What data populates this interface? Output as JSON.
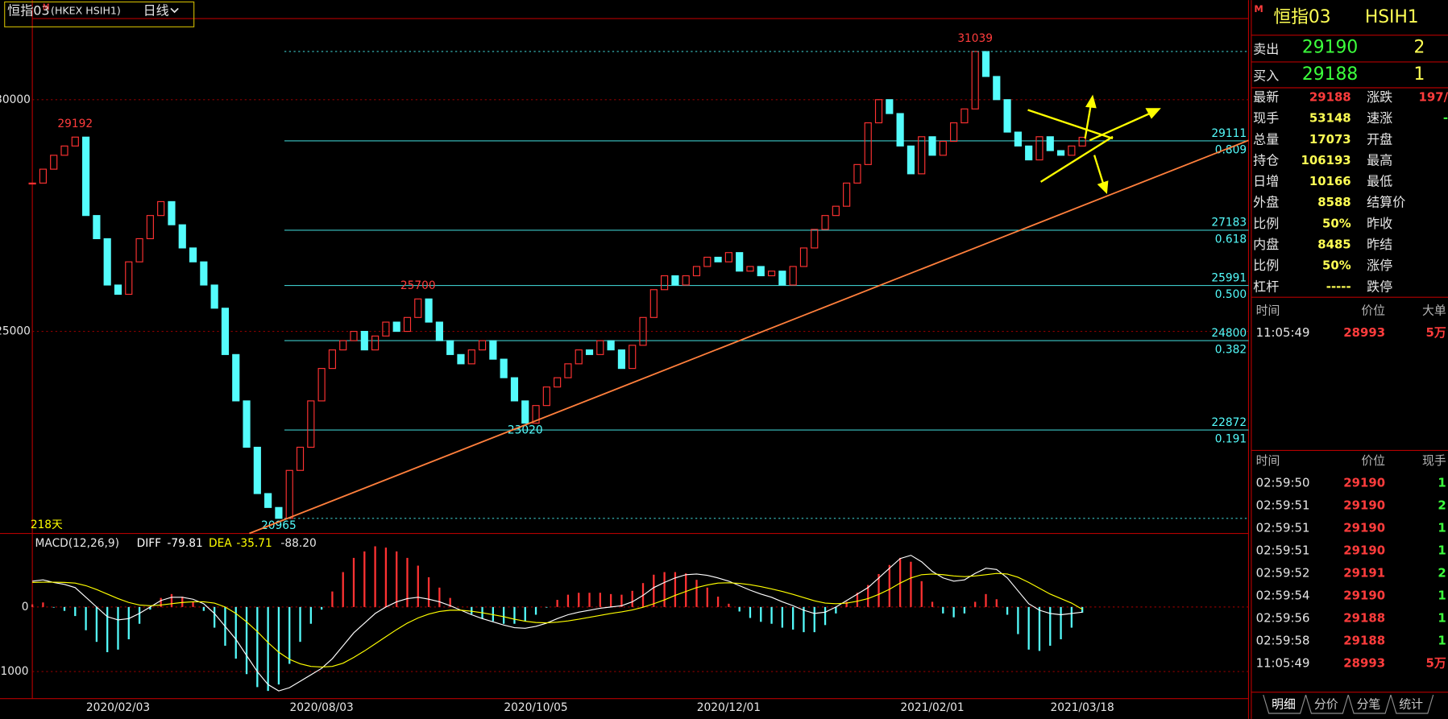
{
  "toolbar": {
    "name": "恒指03",
    "superscript": "M",
    "code": "(HKEX HSIH1)",
    "period": "日线"
  },
  "chart_data": [
    {
      "type": "candlestick",
      "closes": [
        28200,
        28500,
        28800,
        29000,
        29192,
        27500,
        27000,
        26000,
        25800,
        26500,
        27000,
        27500,
        27800,
        27300,
        26800,
        26500,
        26000,
        25500,
        24500,
        23500,
        22500,
        21500,
        21200,
        20965,
        22000,
        22500,
        23500,
        24200,
        24600,
        24800,
        25000,
        24600,
        24900,
        25200,
        25000,
        25300,
        25700,
        25200,
        24800,
        24500,
        24300,
        24600,
        24800,
        24400,
        24000,
        23500,
        23020,
        23400,
        23800,
        24000,
        24300,
        24600,
        24500,
        24800,
        24600,
        24200,
        24700,
        25300,
        25900,
        26200,
        26000,
        26200,
        26400,
        26600,
        26500,
        26700,
        26300,
        26400,
        26200,
        26300,
        26000,
        26400,
        26800,
        27200,
        27500,
        27700,
        28200,
        28600,
        29500,
        30000,
        29700,
        29000,
        28400,
        29200,
        28800,
        29100,
        29500,
        29800,
        31039,
        30500,
        30000,
        29300,
        29000,
        28700,
        29200,
        28900,
        28800,
        29000,
        29188
      ],
      "categories": [
        null,
        null,
        null,
        null,
        null,
        null,
        null,
        null,
        "2020/02/03",
        null,
        null,
        null,
        null,
        null,
        null,
        null,
        null,
        null,
        null,
        null,
        null,
        null,
        null,
        null,
        null,
        null,
        null,
        "2020/08/03",
        null,
        null,
        null,
        null,
        null,
        null,
        null,
        null,
        null,
        null,
        null,
        null,
        null,
        null,
        null,
        null,
        null,
        null,
        null,
        "2020/10/05",
        null,
        null,
        null,
        null,
        null,
        null,
        null,
        null,
        null,
        null,
        null,
        null,
        null,
        null,
        null,
        null,
        null,
        "2020/12/01",
        null,
        null,
        null,
        null,
        null,
        null,
        null,
        null,
        null,
        null,
        null,
        null,
        null,
        null,
        null,
        null,
        null,
        null,
        "2021/02/01",
        null,
        null,
        null,
        null,
        null,
        null,
        null,
        null,
        null,
        null,
        null,
        null,
        null,
        "2021/03/18"
      ],
      "ylim": [
        20640,
        31750
      ],
      "yticks": [
        25000,
        30000
      ],
      "grid": true,
      "up_color": "#ff3232",
      "down_color": "#54fcfc",
      "extremes_high": [
        29192,
        25700,
        31039
      ],
      "extremes_low": [
        23020,
        20965
      ],
      "fib_levels": [
        {
          "price": 29111,
          "ratio": 0.809
        },
        {
          "price": 27183,
          "ratio": 0.618
        },
        {
          "price": 25991,
          "ratio": {
            "value": 0.5,
            "label": "0.500"
          }
        },
        {
          "price": 24800,
          "ratio": 0.382
        },
        {
          "price": 22872,
          "ratio": 0.191
        }
      ],
      "bar_count_label": "218天"
    },
    {
      "type": "macd",
      "title": "MACD(12,26,9)",
      "ylim": [
        -1390,
        1110
      ],
      "yticks": [
        -1000,
        0
      ],
      "grid": true,
      "series": [
        {
          "name": "DIFF",
          "color": "#ffffff",
          "values": [
            400,
            420,
            380,
            350,
            300,
            150,
            0,
            -150,
            -200,
            -180,
            -100,
            0,
            100,
            150,
            150,
            120,
            50,
            -100,
            -300,
            -500,
            -750,
            -1000,
            -1200,
            -1300,
            -1250,
            -1150,
            -1050,
            -950,
            -800,
            -600,
            -400,
            -250,
            -100,
            0,
            80,
            130,
            150,
            120,
            80,
            20,
            -50,
            -120,
            -180,
            -230,
            -280,
            -320,
            -330,
            -300,
            -250,
            -180,
            -120,
            -80,
            -50,
            -20,
            0,
            20,
            80,
            180,
            300,
            380,
            450,
            500,
            510,
            490,
            450,
            400,
            330,
            260,
            200,
            150,
            80,
            20,
            -50,
            -100,
            -80,
            0,
            100,
            200,
            300,
            450,
            600,
            750,
            800,
            700,
            550,
            450,
            400,
            420,
            520,
            600,
            580,
            450,
            250,
            50,
            -50,
            -100,
            -120,
            -100,
            -79.81
          ]
        },
        {
          "name": "DEA",
          "color": "#ffff00",
          "values": [
            380,
            385,
            385,
            380,
            370,
            330,
            270,
            200,
            130,
            70,
            30,
            20,
            30,
            50,
            70,
            80,
            80,
            60,
            0,
            -100,
            -230,
            -380,
            -550,
            -700,
            -810,
            -880,
            -920,
            -930,
            -920,
            -870,
            -780,
            -680,
            -570,
            -460,
            -350,
            -250,
            -170,
            -110,
            -70,
            -50,
            -50,
            -65,
            -90,
            -120,
            -150,
            -190,
            -220,
            -240,
            -245,
            -235,
            -215,
            -190,
            -160,
            -130,
            -100,
            -75,
            -45,
            -5,
            50,
            110,
            180,
            240,
            300,
            340,
            370,
            375,
            365,
            345,
            315,
            280,
            240,
            195,
            145,
            95,
            60,
            50,
            60,
            90,
            130,
            195,
            275,
            370,
            450,
            500,
            510,
            500,
            480,
            470,
            480,
            500,
            520,
            510,
            460,
            380,
            290,
            200,
            130,
            60,
            -35.71
          ]
        }
      ],
      "histogram": {
        "up_color": "#ff3232",
        "down_color": "#54fcfc",
        "last_label": "-88.20",
        "values": [
          40,
          70,
          -10,
          -60,
          -140,
          -360,
          -540,
          -700,
          -660,
          -500,
          -260,
          -40,
          140,
          200,
          160,
          80,
          -60,
          -320,
          -600,
          -800,
          -1040,
          -1240,
          -1300,
          -1200,
          -880,
          -540,
          -260,
          -40,
          240,
          540,
          760,
          860,
          940,
          920,
          860,
          760,
          640,
          460,
          300,
          140,
          0,
          -110,
          -180,
          -220,
          -260,
          -260,
          -220,
          -120,
          -10,
          110,
          190,
          220,
          220,
          220,
          200,
          190,
          250,
          370,
          500,
          540,
          540,
          520,
          420,
          300,
          160,
          50,
          -70,
          -170,
          -230,
          -260,
          -320,
          -350,
          -390,
          -390,
          -280,
          -100,
          80,
          220,
          340,
          510,
          650,
          760,
          700,
          400,
          80,
          -100,
          -160,
          -100,
          80,
          200,
          120,
          -120,
          -420,
          -660,
          -680,
          -600,
          -500,
          -320,
          -88.2
        ]
      }
    }
  ],
  "quote": {
    "mark": "M",
    "name": "恒指03",
    "code": "HSIH1",
    "sell": {
      "label": "卖出",
      "price": 29190,
      "qty": 2
    },
    "buy": {
      "label": "买入",
      "price": 29188,
      "qty": 1
    }
  },
  "stats": [
    {
      "label": "最新",
      "value": 29188,
      "label2": "涨跌",
      "value2": "197/"
    },
    {
      "label": "现手",
      "value": 53148,
      "label2": "速涨",
      "value2": "-"
    },
    {
      "label": "总量",
      "value": 17073,
      "label2": "开盘"
    },
    {
      "label": "持仓",
      "value": 106193,
      "label2": "最高"
    },
    {
      "label": "日增",
      "value": 10166,
      "label2": "最低"
    },
    {
      "label": "外盘",
      "value": 8588,
      "label2": "结算价"
    },
    {
      "label": "比例",
      "value": "50%",
      "label2": "昨收"
    },
    {
      "label": "内盘",
      "value": 8485,
      "label2": "昨结"
    },
    {
      "label": "比例",
      "value": "50%",
      "label2": "涨停"
    },
    {
      "label": "杠杆",
      "value": "-----",
      "label2": "跌停"
    }
  ],
  "big_trades": {
    "header": [
      "时间",
      "价位",
      "大单"
    ],
    "rows": [
      [
        "11:05:49",
        28993,
        "5万"
      ]
    ]
  },
  "ticks": {
    "header": [
      "时间",
      "价位",
      "现手"
    ],
    "rows": [
      [
        "02:59:50",
        29190,
        1
      ],
      [
        "02:59:51",
        29190,
        2
      ],
      [
        "02:59:51",
        29190,
        1
      ],
      [
        "02:59:51",
        29190,
        1
      ],
      [
        "02:59:52",
        29191,
        2
      ],
      [
        "02:59:54",
        29190,
        1
      ],
      [
        "02:59:56",
        29188,
        1
      ],
      [
        "02:59:58",
        29188,
        1
      ],
      [
        "11:05:49",
        28993,
        "5万"
      ]
    ]
  },
  "tabs": [
    "明细",
    "分价",
    "分笔",
    "统计"
  ]
}
